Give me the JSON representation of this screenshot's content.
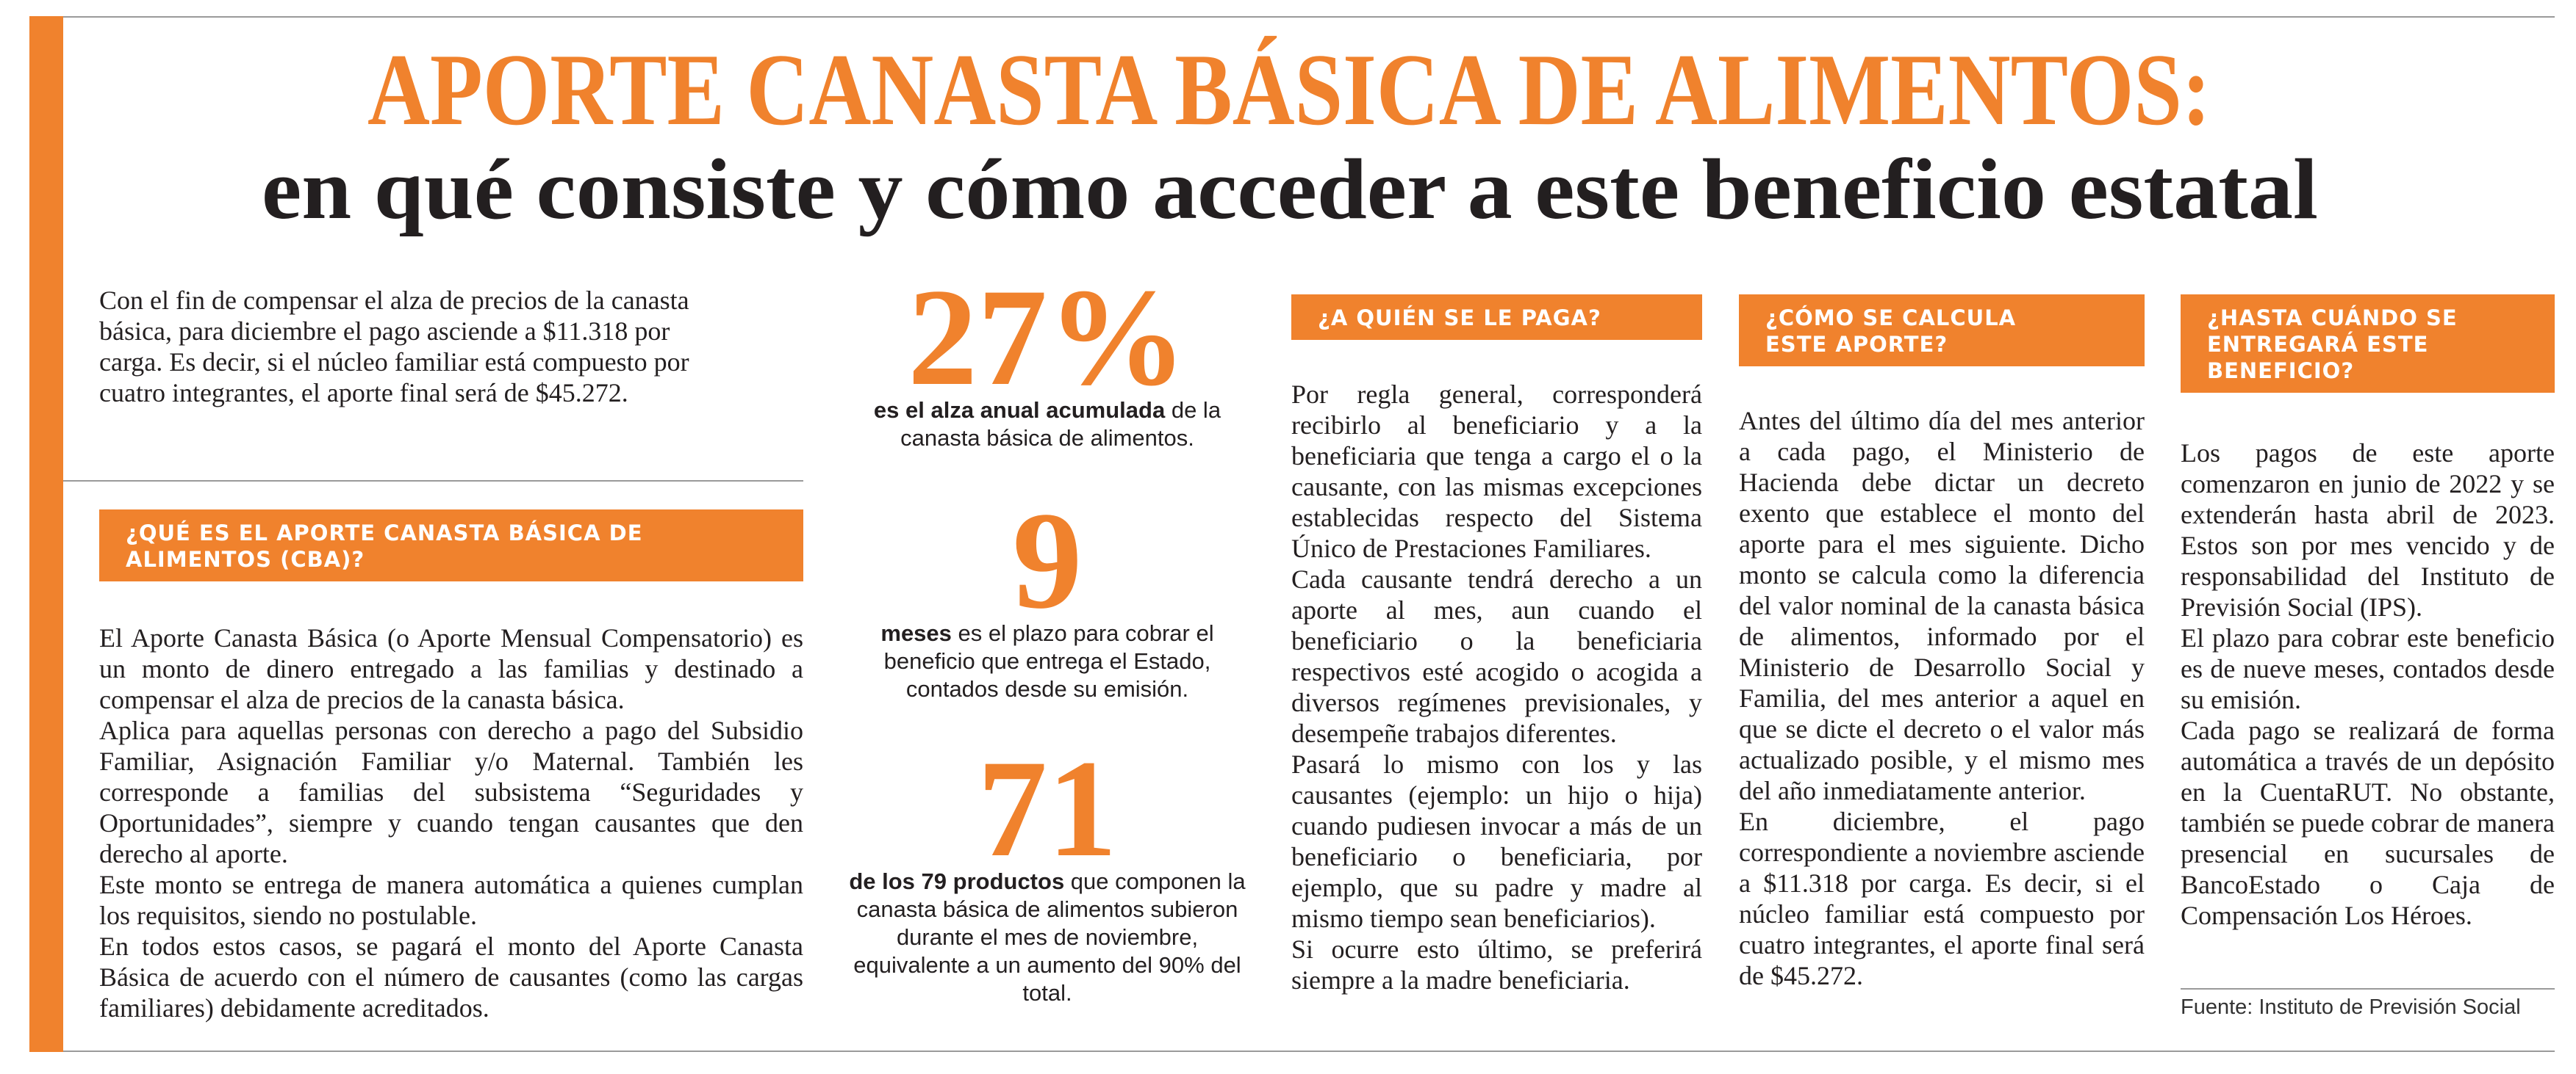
{
  "header": {
    "title": "APORTE CANASTA BÁSICA DE ALIMENTOS:",
    "subtitle": "en qué consiste y cómo acceder a este beneficio estatal"
  },
  "intro": "Con el fin de compensar el alza de precios de la canasta básica, para diciembre el pago asciende a $11.318 por carga. Es decir, si el núcleo familiar está compuesto por cuatro integrantes, el aporte final será de $45.272.",
  "stats": [
    {
      "value": "27%",
      "bold": "es el alza anual acumulada",
      "text": " de la canasta básica de alimentos."
    },
    {
      "value": "9",
      "bold": "meses",
      "text": " es el plazo para cobrar el beneficio que entrega el Estado, contados desde su emisión."
    },
    {
      "value": "71",
      "bold": "de los 79 productos",
      "text": " que componen la canasta básica de alimentos subieron durante el mes de noviembre, equivalente a un aumento del 90% del total."
    }
  ],
  "sections": [
    {
      "heading": "¿QUÉ ES EL APORTE CANASTA BÁSICA DE ALIMENTOS (CBA)?",
      "paragraphs": [
        "El Aporte Canasta Básica (o Aporte Mensual Compensatorio) es un monto de dinero entregado a las familias y destinado a compensar el alza de precios de la canasta básica.",
        "Aplica para aquellas personas con derecho a pago del Subsidio Familiar, Asignación Familiar y/o Maternal. También les corresponde a familias del subsistema “Seguridades y Oportunidades”, siempre y cuando tengan causantes que den derecho al aporte.",
        "Este monto se entrega de manera automática a quienes cumplan los requisitos, siendo no postulable.",
        "En todos estos casos, se pagará el monto del Aporte Canasta Básica de acuerdo con el número de causantes (como las cargas familiares) debidamente acreditados."
      ]
    },
    {
      "heading": "¿A QUIÉN SE LE PAGA?",
      "paragraphs": [
        "Por regla general, corresponderá recibirlo al beneficiario y a la beneficiaria que tenga a cargo el o la causante, con las mismas excepciones establecidas respecto del Sistema Único de Prestaciones Familiares.",
        "Cada causante tendrá derecho a un aporte al mes, aun cuando el beneficiario o la beneficiaria respectivos esté acogido o acogida a diversos regímenes previsionales, y desempeñe trabajos diferentes.",
        "Pasará lo mismo con los y las causantes (ejemplo: un hijo o hija) cuando pudiesen invocar a más de un beneficiario o beneficiaria, por ejemplo, que su padre y madre al mismo tiempo sean beneficiarios).",
        "Si ocurre esto último, se preferirá siempre a la madre beneficiaria."
      ]
    },
    {
      "heading": "¿CÓMO SE CALCULA ESTE APORTE?",
      "paragraphs": [
        "Antes del último día del mes anterior a cada pago, el Ministerio de Hacienda debe dictar un decreto exento que establece el monto del aporte para el mes siguiente. Dicho monto se calcula como la diferencia del valor nominal de la canasta básica de alimentos, informado por el Ministerio de Desarrollo Social y Familia, del mes anterior a aquel en que se dicte el decreto o el valor más actualizado posible, y el mismo mes del año inmediatamente anterior.",
        "En diciembre, el pago correspondiente a noviembre asciende a $11.318 por carga. Es decir, si el núcleo familiar está compuesto por cuatro integrantes, el aporte final será de $45.272."
      ]
    },
    {
      "heading": "¿HASTA CUÁNDO SE ENTREGARÁ ESTE BENEFICIO?",
      "paragraphs": [
        "Los pagos de este aporte comenzaron en junio de 2022 y se extenderán hasta abril de 2023. Estos son por mes vencido y de responsabilidad del Instituto de Previsión Social (IPS).",
        "El plazo para cobrar este beneficio es de nueve meses, contados desde su emisión.",
        "Cada pago se realizará de forma automática a través de un depósito en la CuentaRUT. No obstante, también se puede cobrar de manera presencial en sucursales de BancoEstado o Caja de Compensación Los Héroes."
      ]
    }
  ],
  "source": "Fuente: Instituto de Previsión Social"
}
